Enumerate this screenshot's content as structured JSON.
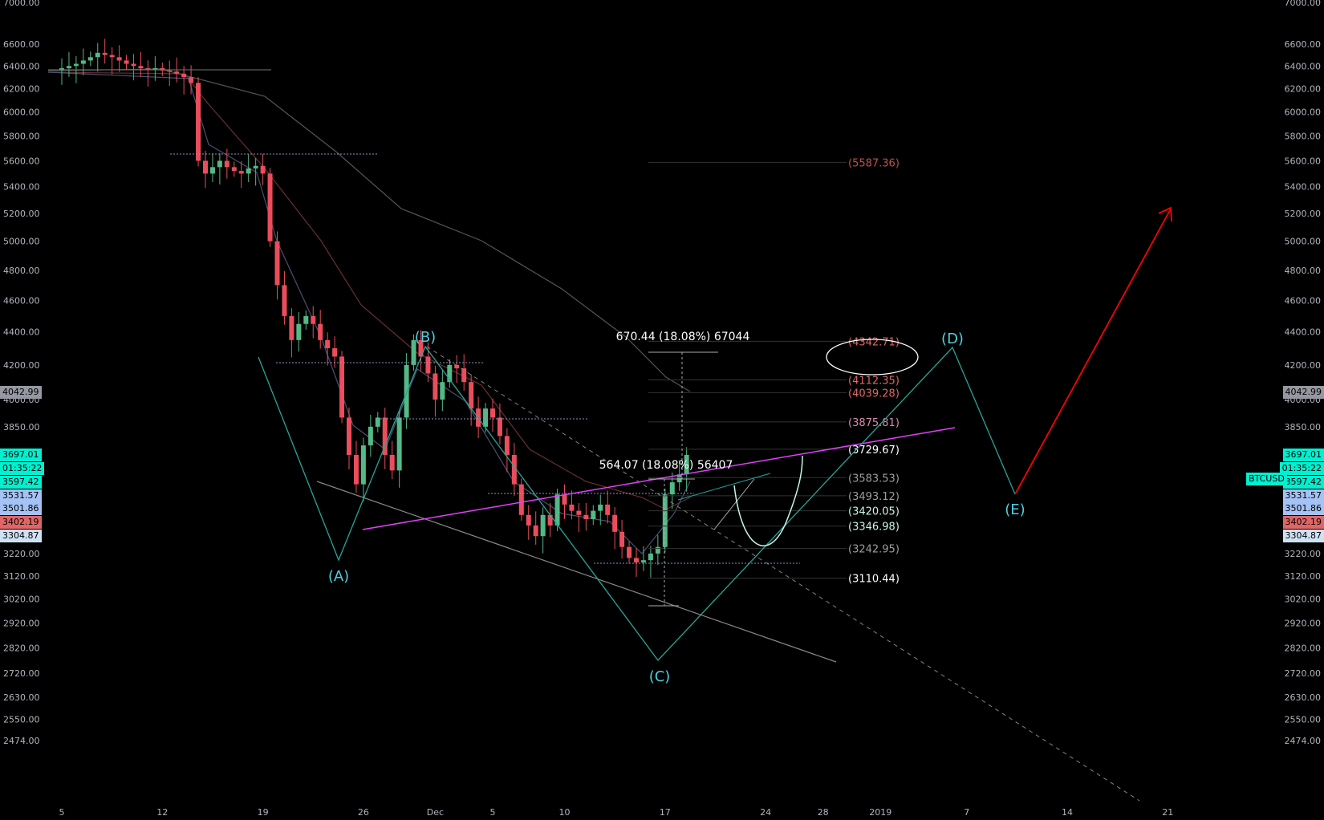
{
  "chart_data": {
    "type": "candlestick",
    "symbol": "BTCUSD",
    "y_scale": "log",
    "ylim": [
      2474,
      7000
    ],
    "y_ticks": [
      7000,
      6600,
      6400,
      6200,
      6000,
      5800,
      5600,
      5400,
      5200,
      5000,
      4800,
      4600,
      4400,
      4200,
      4000,
      3850,
      3220,
      3120,
      3020,
      2920,
      2820,
      2720,
      2630,
      2550,
      2474
    ],
    "x_ticks": [
      "5",
      "12",
      "19",
      "26",
      "Dec",
      "5",
      "10",
      "17",
      "24",
      "28",
      "2019",
      "7",
      "14",
      "21"
    ],
    "x_tick_days": [
      0,
      7,
      14,
      21,
      26,
      30,
      35,
      42,
      49,
      53,
      57,
      63,
      70,
      77
    ],
    "closes_half_day": [
      6360,
      6380,
      6400,
      6420,
      6450,
      6480,
      6520,
      6500,
      6480,
      6450,
      6420,
      6400,
      6380,
      6370,
      6380,
      6360,
      6350,
      6330,
      6300,
      6250,
      5600,
      5500,
      5550,
      5600,
      5550,
      5520,
      5500,
      5540,
      5560,
      5500,
      5000,
      4700,
      4500,
      4350,
      4450,
      4500,
      4450,
      4350,
      4300,
      4250,
      3900,
      3700,
      3550,
      3750,
      3850,
      3900,
      3700,
      3620,
      3900,
      4200,
      4350,
      4250,
      4150,
      4000,
      4100,
      4200,
      4180,
      4100,
      3950,
      3850,
      3950,
      3900,
      3800,
      3700,
      3550,
      3400,
      3350,
      3300,
      3400,
      3350,
      3500,
      3450,
      3420,
      3400,
      3380,
      3420,
      3450,
      3400,
      3320,
      3250,
      3200,
      3180,
      3190,
      3220,
      3250,
      3500,
      3560,
      3600,
      3700
    ],
    "levels": [
      {
        "label": "(5587.36)",
        "price": 5587.36,
        "color": "#c0504d"
      },
      {
        "label": "(4342.71)",
        "price": 4342.71,
        "color": "#e06666"
      },
      {
        "label": "(4112.35)",
        "price": 4112.35,
        "color": "#e06666"
      },
      {
        "label": "(4039.28)",
        "price": 4039.28,
        "color": "#e06666"
      },
      {
        "label": "(3875.81)",
        "price": 3875.81,
        "color": "#d98ab0"
      },
      {
        "label": "(3729.67)",
        "price": 3729.67,
        "color": "#ffffff"
      },
      {
        "label": "(3583.53)",
        "price": 3583.53,
        "color": "#9e9e9e"
      },
      {
        "label": "(3493.12)",
        "price": 3493.12,
        "color": "#9e9e9e"
      },
      {
        "label": "(3420.05)",
        "price": 3420.05,
        "color": "#c8f5e8"
      },
      {
        "label": "(3346.98)",
        "price": 3346.98,
        "color": "#c8f5e8"
      },
      {
        "label": "(3242.95)",
        "price": 3242.95,
        "color": "#9e9e9e"
      },
      {
        "label": "(3110.44)",
        "price": 3110.44,
        "color": "#ffffff"
      }
    ],
    "wave_labels": [
      "(A)",
      "(B)",
      "(C)",
      "(D)",
      "(E)"
    ],
    "measures": [
      "670.44 (18.08%) 67044",
      "564.07 (18.08%) 56407"
    ],
    "badges": [
      {
        "text": "4042.99",
        "color": "#9598a1"
      },
      {
        "text": "3697.01",
        "color": "#00f0d0"
      },
      {
        "text": "01:35:22",
        "color": "#00f0d0"
      },
      {
        "text": "3597.42",
        "color": "#00f0d0"
      },
      {
        "text": "3531.57",
        "color": "#a4c2f4"
      },
      {
        "text": "3501.86",
        "color": "#a4c2f4"
      },
      {
        "text": "3402.19",
        "color": "#e06666"
      },
      {
        "text": "3304.87",
        "color": "#cfe2f3"
      }
    ],
    "colors": {
      "up": "#53b987",
      "down": "#eb4d5c",
      "wave": "#26a69a",
      "trend": "#e040fb",
      "arrow": "#ff0000"
    }
  }
}
